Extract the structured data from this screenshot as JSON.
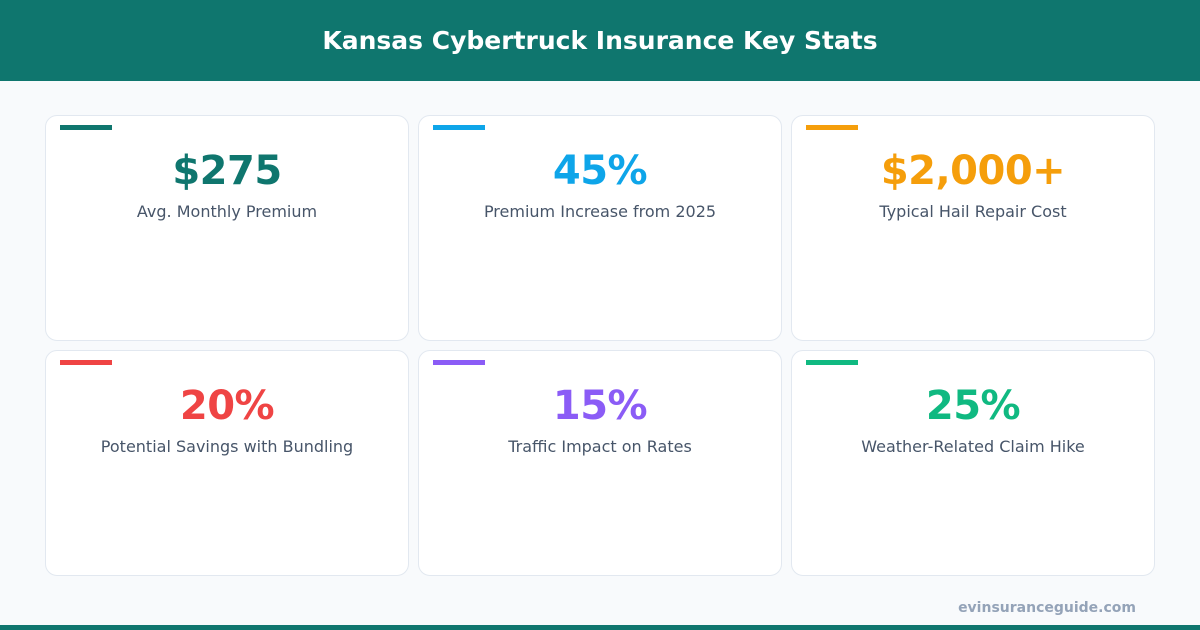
{
  "title": "Kansas Cybertruck Insurance Key Stats",
  "cards": [
    {
      "value": "$275",
      "label": "Avg. Monthly Premium",
      "color": "#0f766e"
    },
    {
      "value": "45%",
      "label": "Premium Increase from 2025",
      "color": "#0ea5e9"
    },
    {
      "value": "$2,000+",
      "label": "Typical Hail Repair Cost",
      "color": "#f59e0b"
    },
    {
      "value": "20%",
      "label": "Potential Savings with Bundling",
      "color": "#ef4444"
    },
    {
      "value": "15%",
      "label": "Traffic Impact on Rates",
      "color": "#8b5cf6"
    },
    {
      "value": "25%",
      "label": "Weather-Related Claim Hike",
      "color": "#10b981"
    }
  ],
  "site": "evinsuranceguide.com"
}
